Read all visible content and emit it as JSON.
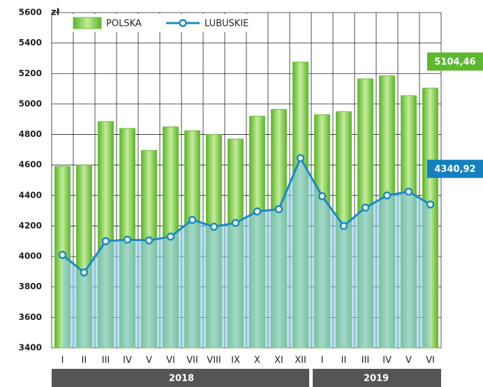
{
  "chart_data": {
    "type": "bar-line",
    "y_label": "zł",
    "categories": [
      "I",
      "II",
      "III",
      "IV",
      "V",
      "VI",
      "VII",
      "VIII",
      "IX",
      "X",
      "XI",
      "XII",
      "I",
      "II",
      "III",
      "IV",
      "V",
      "VI"
    ],
    "groups": [
      {
        "label": "2018",
        "span": 12
      },
      {
        "label": "2019",
        "span": 6
      }
    ],
    "series": [
      {
        "name": "POLSKA",
        "type": "bar",
        "color": "#6cc03a",
        "values": [
          4590,
          4600,
          4885,
          4840,
          4695,
          4850,
          4825,
          4800,
          4770,
          4920,
          4965,
          5275,
          4930,
          4950,
          5165,
          5185,
          5055,
          5104.46
        ],
        "value_labels": [
          null,
          null,
          null,
          null,
          null,
          null,
          null,
          null,
          null,
          null,
          null,
          null,
          null,
          null,
          null,
          null,
          null,
          "5104,46"
        ]
      },
      {
        "name": "LUBUSKIE",
        "type": "line",
        "color": "#1a8ac6",
        "values": [
          4010,
          3895,
          4100,
          4110,
          4105,
          4130,
          4240,
          4195,
          4220,
          4295,
          4310,
          4645,
          4395,
          4200,
          4320,
          4400,
          4425,
          4340.92
        ],
        "value_labels": [
          null,
          null,
          null,
          null,
          null,
          null,
          null,
          null,
          null,
          null,
          null,
          null,
          null,
          null,
          null,
          null,
          null,
          "4340,92"
        ]
      }
    ],
    "ylim": [
      3400,
      5600
    ],
    "yticks": [
      3400,
      3600,
      3800,
      4000,
      4200,
      4400,
      4600,
      4800,
      5000,
      5200,
      5400,
      5600
    ],
    "grid": true,
    "legend": "top"
  }
}
